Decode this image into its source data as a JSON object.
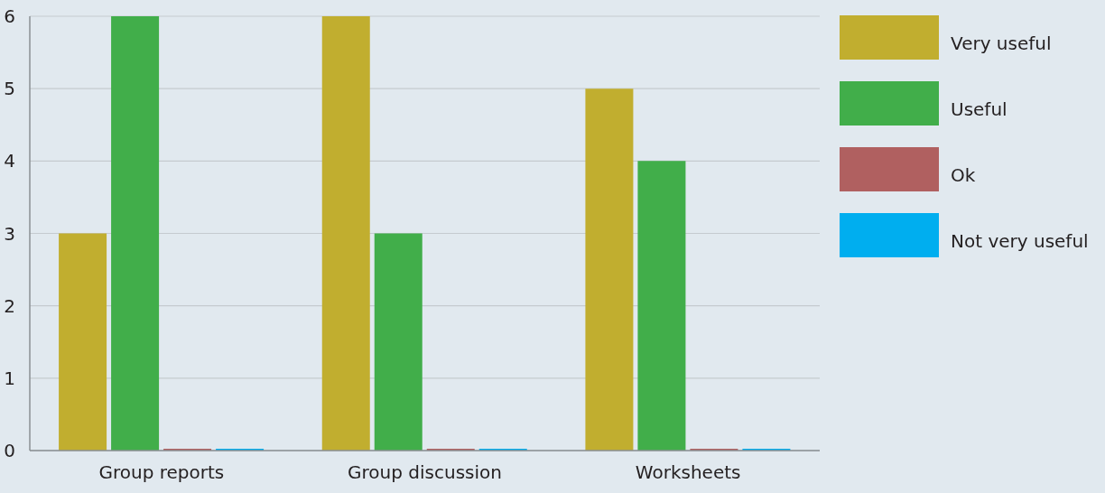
{
  "chart_data": {
    "type": "bar",
    "categories": [
      "Group reports",
      "Group discussion",
      "Worksheets"
    ],
    "series": [
      {
        "name": "Very useful",
        "color": "#c1ae2f",
        "values": [
          3,
          6,
          5
        ]
      },
      {
        "name": "Useful",
        "color": "#41ae4a",
        "values": [
          6,
          3,
          4
        ]
      },
      {
        "name": "Ok",
        "color": "#b06060",
        "values": [
          0,
          0,
          0
        ]
      },
      {
        "name": "Not very useful",
        "color": "#00aeef",
        "values": [
          0,
          0,
          0
        ]
      }
    ],
    "ylim": [
      0,
      6
    ],
    "yticks": [
      0,
      1,
      2,
      3,
      4,
      5,
      6
    ],
    "grid": "y",
    "legend": "top right"
  }
}
